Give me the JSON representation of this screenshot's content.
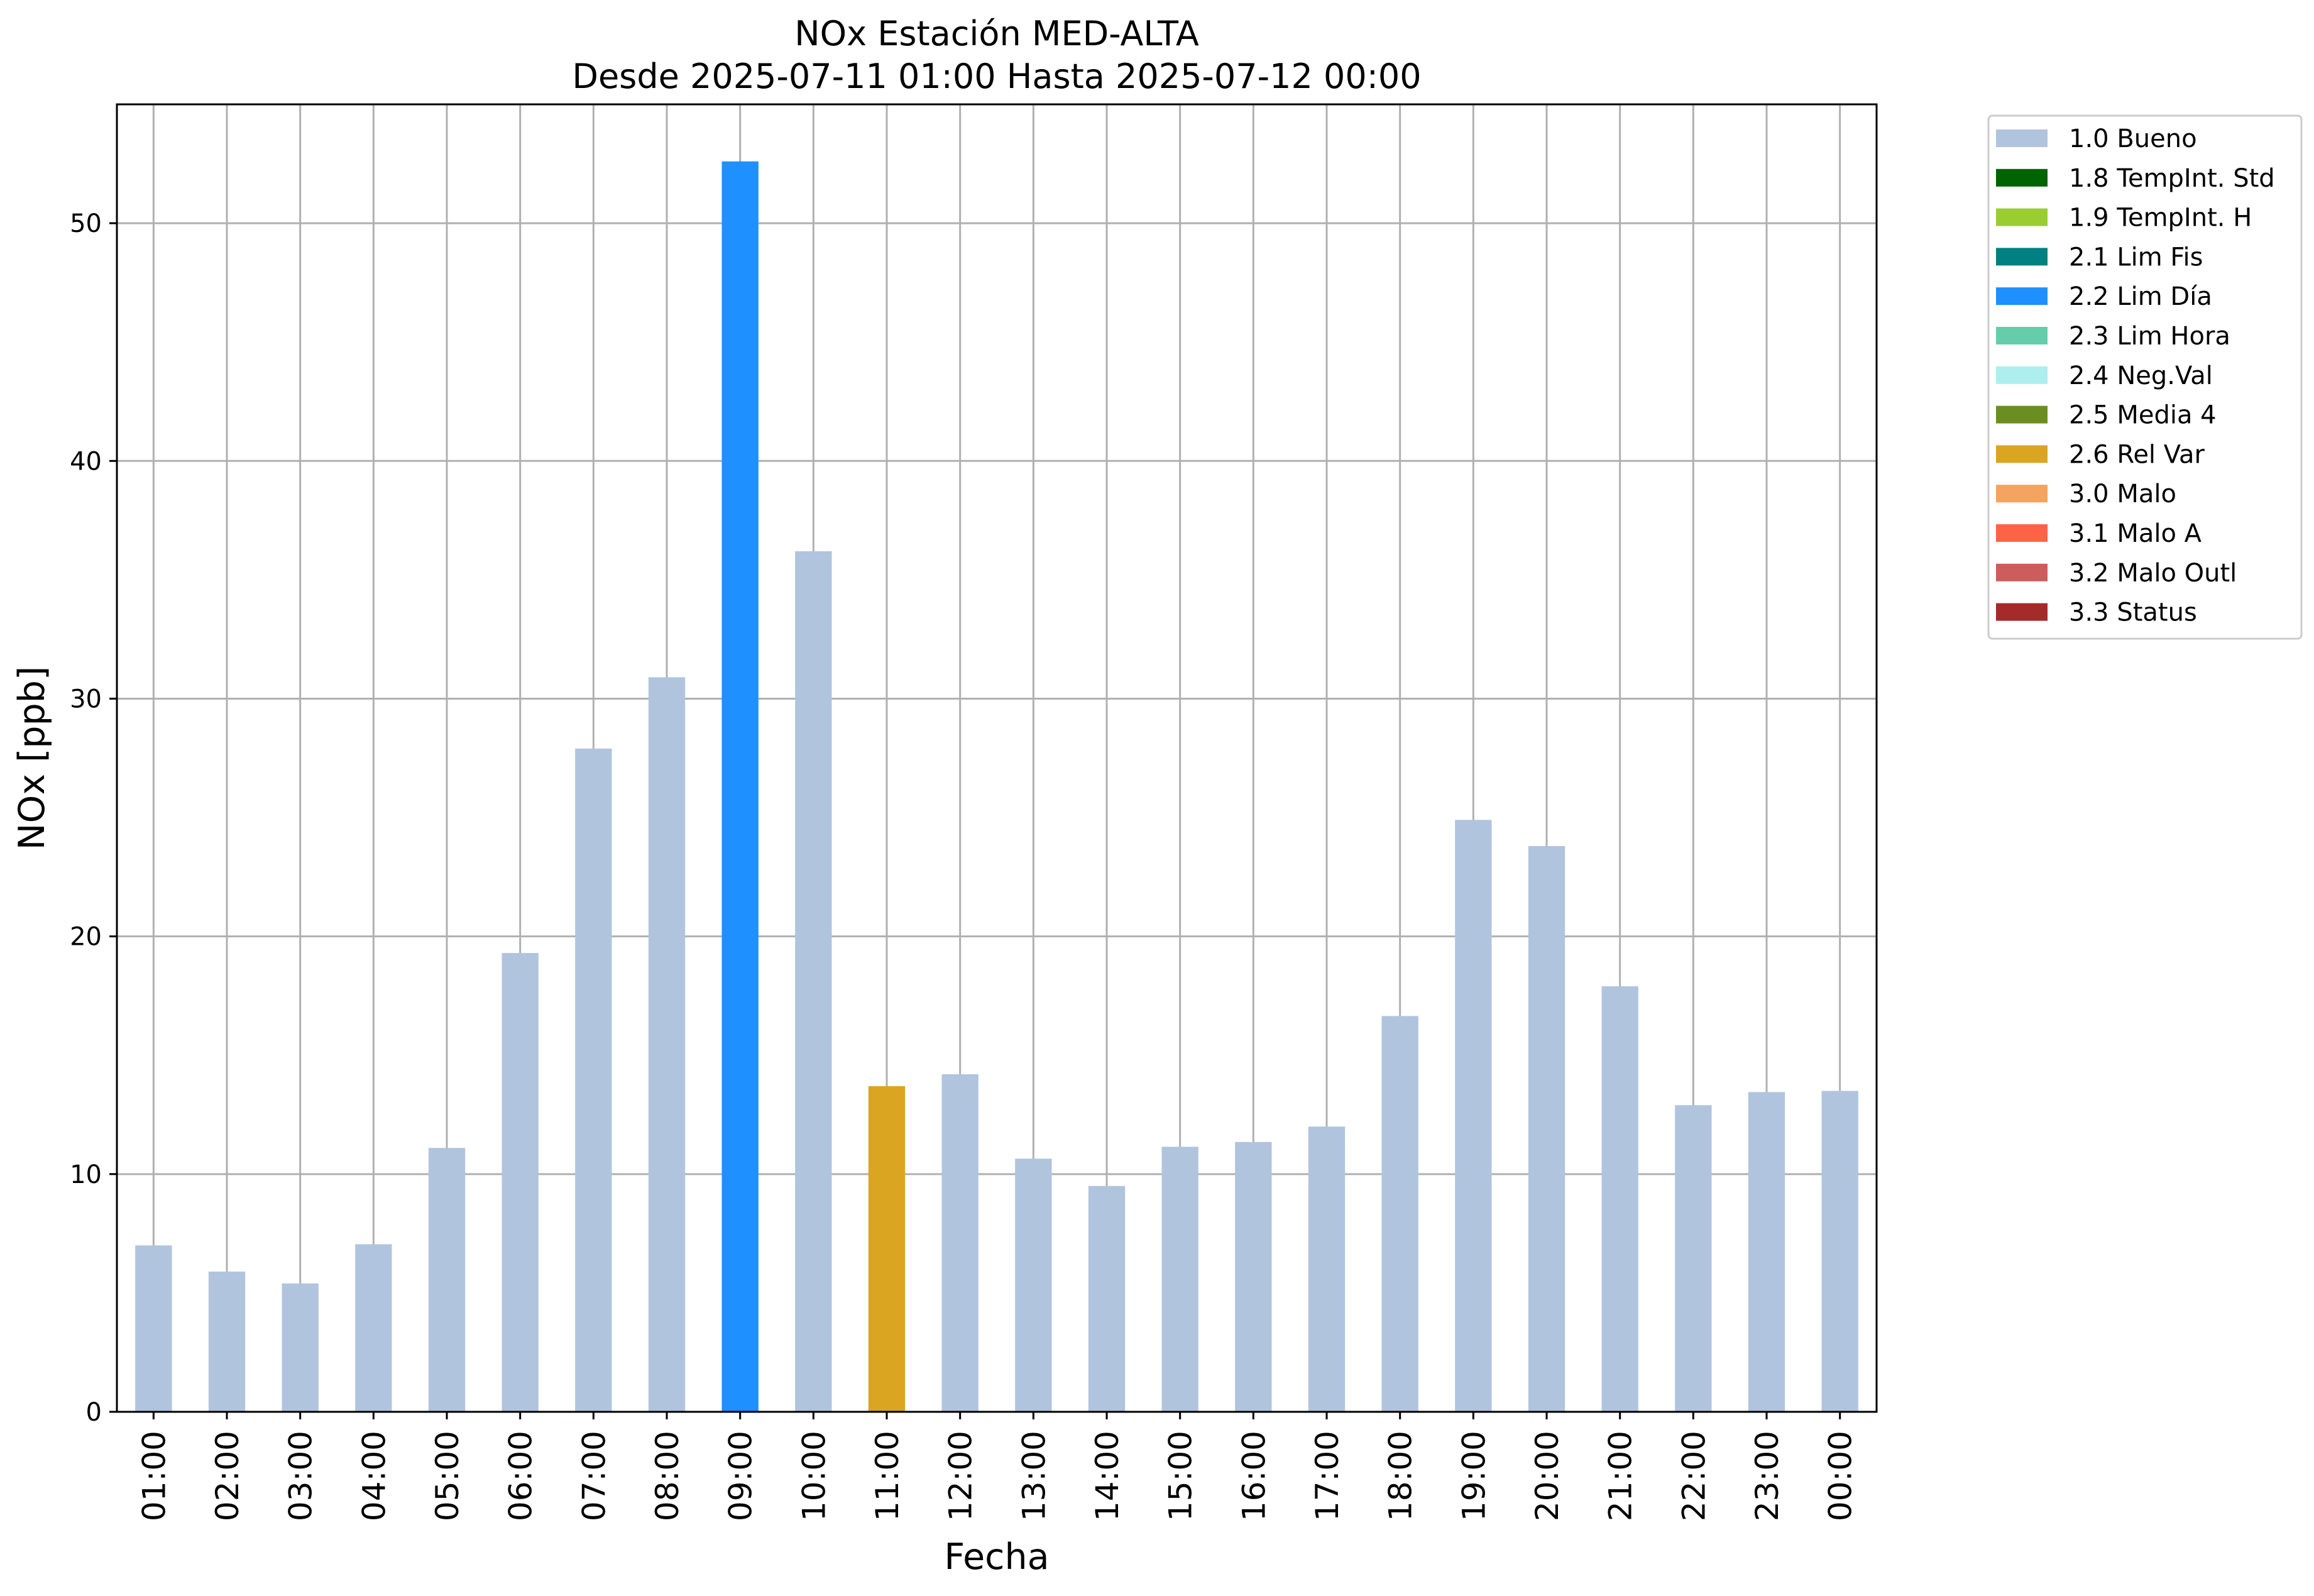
{
  "chart_data": {
    "type": "bar",
    "title": [
      "NOx Estación MED-ALTA",
      "Desde 2025-07-11 01:00 Hasta 2025-07-12 00:00"
    ],
    "xlabel": "Fecha",
    "ylabel": "NOx [ppb]",
    "ylim": [
      0,
      55
    ],
    "yticks": [
      0,
      10,
      20,
      30,
      40,
      50
    ],
    "grid": true,
    "legend_placement": "outside-top-right",
    "categories": [
      "01:00",
      "02:00",
      "03:00",
      "04:00",
      "05:00",
      "06:00",
      "07:00",
      "08:00",
      "09:00",
      "10:00",
      "11:00",
      "12:00",
      "13:00",
      "14:00",
      "15:00",
      "16:00",
      "17:00",
      "18:00",
      "19:00",
      "20:00",
      "21:00",
      "22:00",
      "23:00",
      "00:00"
    ],
    "values": [
      7.0,
      5.9,
      5.4,
      7.05,
      11.1,
      19.3,
      27.9,
      30.9,
      52.6,
      36.2,
      13.7,
      14.2,
      10.65,
      9.5,
      11.15,
      11.35,
      12.0,
      16.65,
      24.9,
      23.8,
      17.9,
      12.9,
      13.45,
      13.5
    ],
    "flags": [
      "1.0 Bueno",
      "1.0 Bueno",
      "1.0 Bueno",
      "1.0 Bueno",
      "1.0 Bueno",
      "1.0 Bueno",
      "1.0 Bueno",
      "1.0 Bueno",
      "2.2 Lim Día",
      "1.0 Bueno",
      "2.6 Rel Var",
      "1.0 Bueno",
      "1.0 Bueno",
      "1.0 Bueno",
      "1.0 Bueno",
      "1.0 Bueno",
      "1.0 Bueno",
      "1.0 Bueno",
      "1.0 Bueno",
      "1.0 Bueno",
      "1.0 Bueno",
      "1.0 Bueno",
      "1.0 Bueno",
      "1.0 Bueno"
    ],
    "legend": [
      {
        "label": "1.0 Bueno",
        "color": "#b0c4de"
      },
      {
        "label": "1.8 TempInt. Std",
        "color": "#006400"
      },
      {
        "label": "1.9 TempInt. H",
        "color": "#9acd32"
      },
      {
        "label": "2.1 Lim Fis",
        "color": "#008080"
      },
      {
        "label": "2.2 Lim Día",
        "color": "#1e90ff"
      },
      {
        "label": "2.3 Lim Hora",
        "color": "#66cdaa"
      },
      {
        "label": "2.4 Neg.Val",
        "color": "#afeeee"
      },
      {
        "label": "2.5 Media 4",
        "color": "#6b8e23"
      },
      {
        "label": "2.6 Rel Var",
        "color": "#daa520"
      },
      {
        "label": "3.0 Malo",
        "color": "#f4a460"
      },
      {
        "label": "3.1 Malo A",
        "color": "#ff6347"
      },
      {
        "label": "3.2 Malo Outl",
        "color": "#cd5c5c"
      },
      {
        "label": "3.3 Status",
        "color": "#a52a2a"
      }
    ]
  }
}
